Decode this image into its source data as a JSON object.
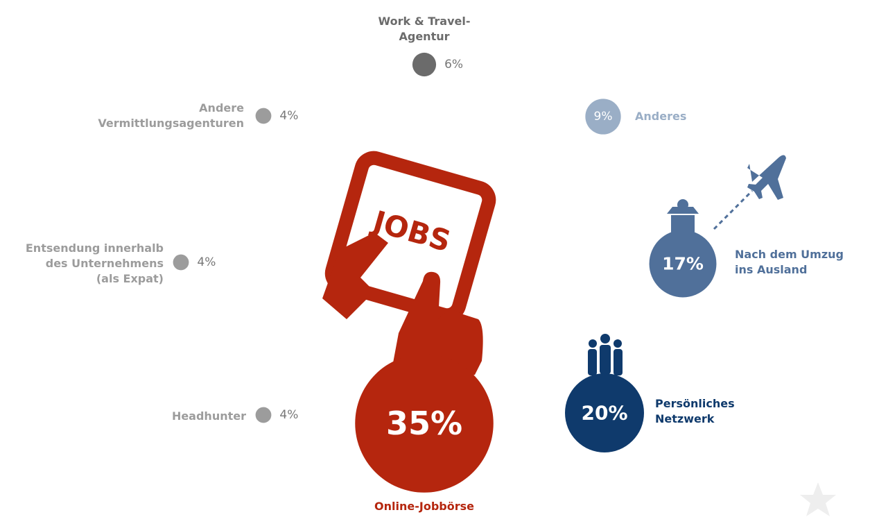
{
  "chart_data": {
    "type": "bubble",
    "categories": [
      "Work & Travel-\nAgentur",
      "Andere\nVermittlungsagenturen",
      "Entsendung innerhalb\ndes Unternehmens\n(als Expat)",
      "Headhunter",
      "Online-Jobbörse",
      "Persönliches\nNetzwerk",
      "Nach dem Umzug\nins Ausland",
      "Anderes"
    ],
    "values": [
      6,
      4,
      4,
      4,
      35,
      20,
      17,
      9
    ],
    "value_labels": [
      "6%",
      "4%",
      "4%",
      "4%",
      "35%",
      "20%",
      "17%",
      "9%"
    ],
    "colors": [
      "#6b6b6b",
      "#9c9c9c",
      "#9c9c9c",
      "#9c9c9c",
      "#b5260e",
      "#0f3a6c",
      "#50709a",
      "#9aaec6"
    ],
    "annotations": [
      "JOBS"
    ]
  }
}
